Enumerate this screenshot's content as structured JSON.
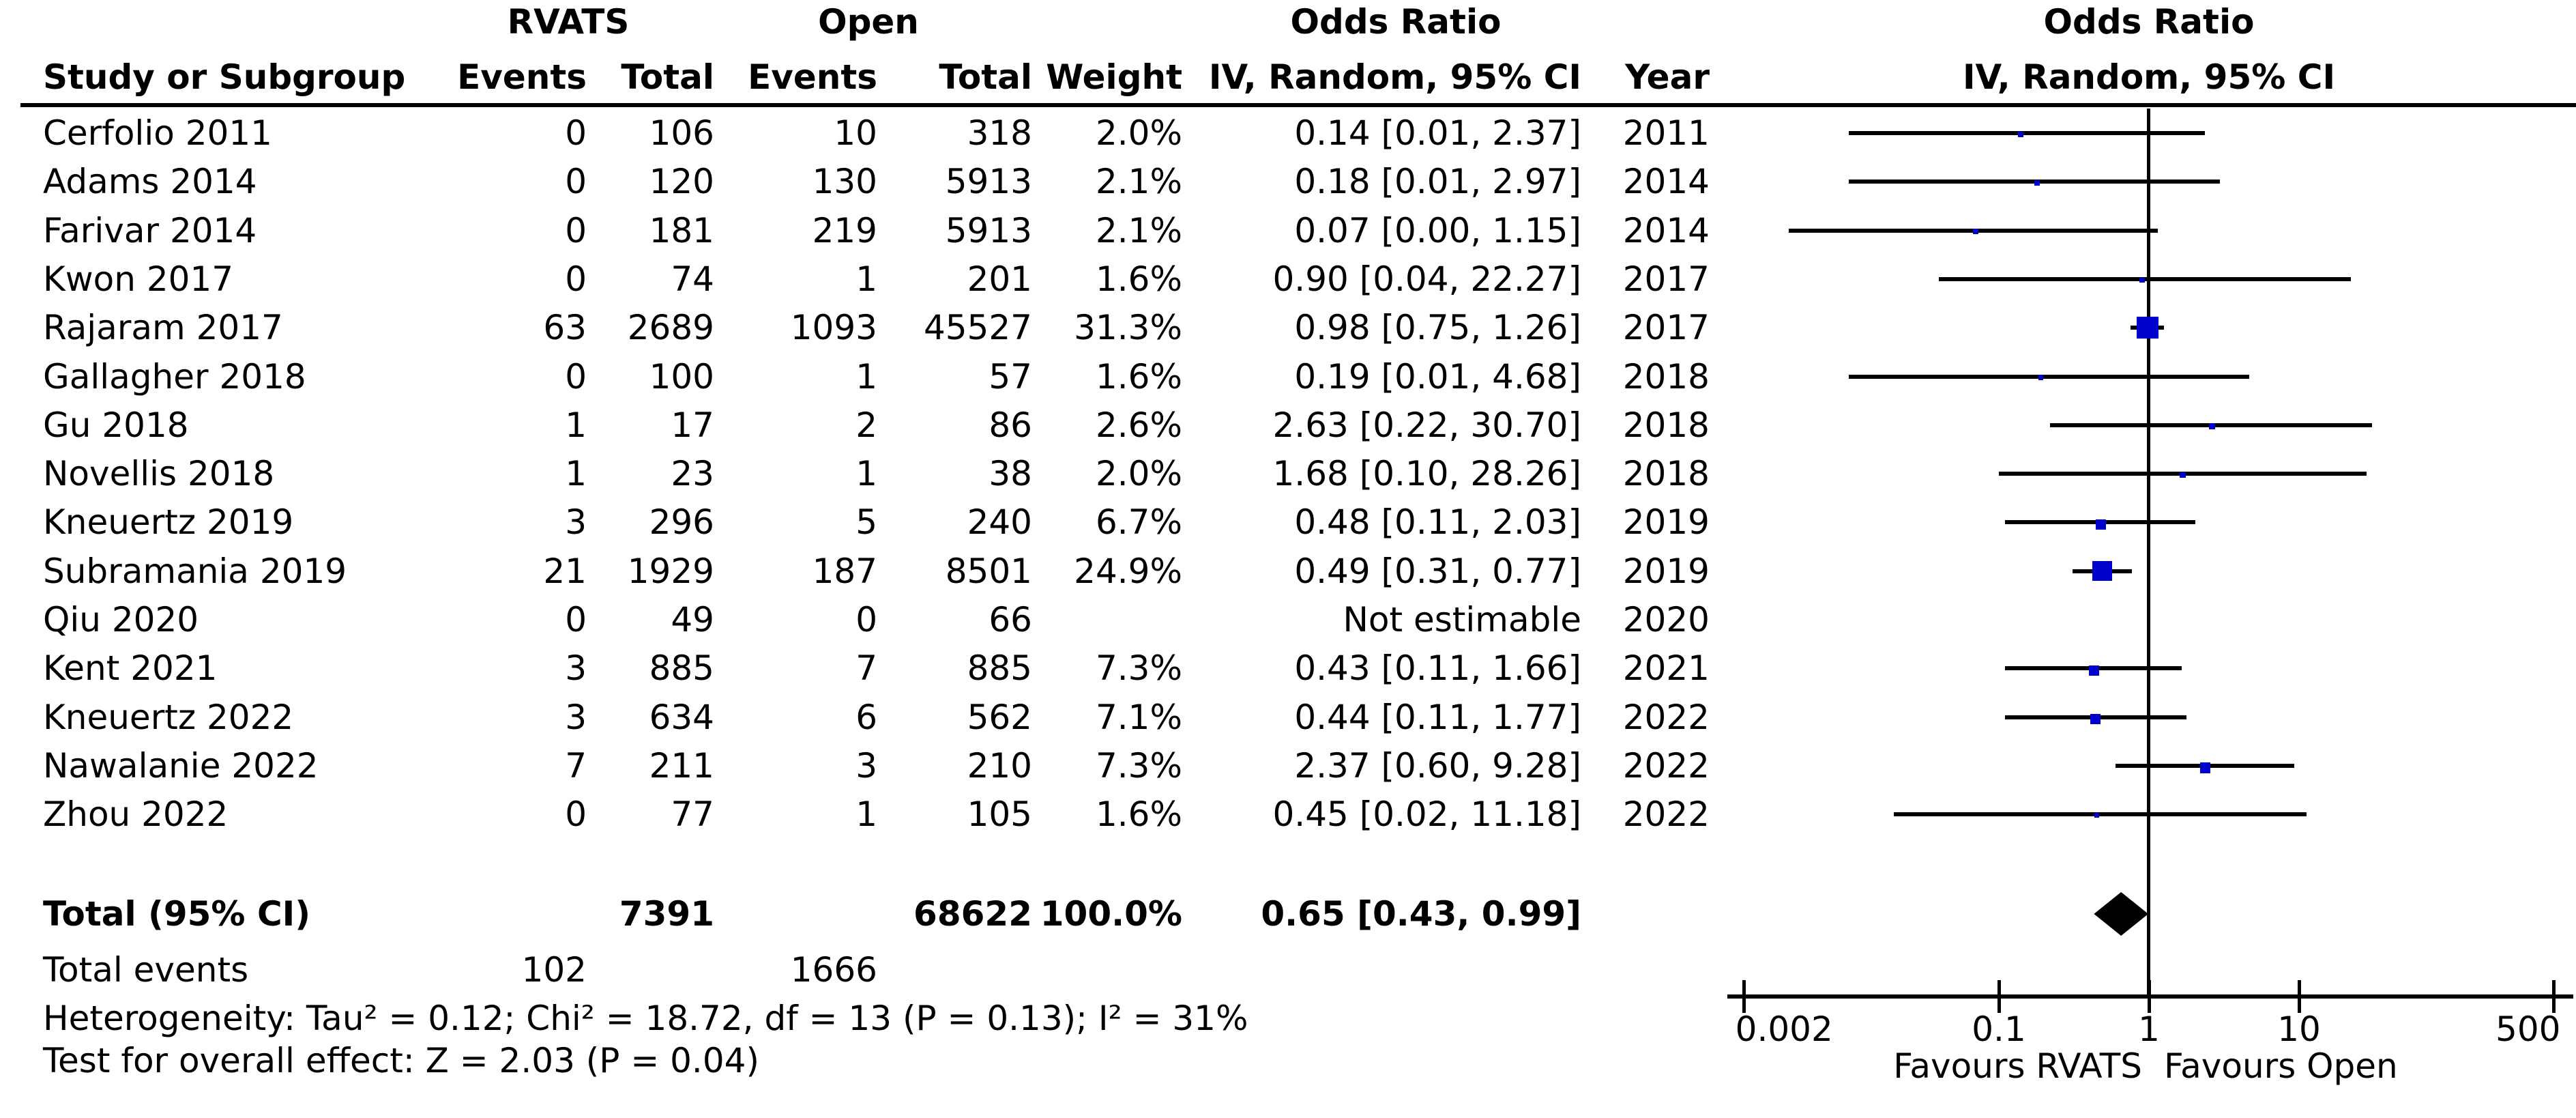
{
  "header": {
    "group1": "RVATS",
    "group2": "Open",
    "or_col_title": "Odds Ratio",
    "or_col_subtitle": "IV, Random, 95% CI",
    "plot_title": "Odds Ratio",
    "plot_subtitle": "IV, Random, 95% CI",
    "study": "Study or Subgroup",
    "events": "Events",
    "total": "Total",
    "weight": "Weight",
    "year": "Year"
  },
  "chart_data": {
    "type": "forest_plot",
    "effect_measure": "Odds Ratio, IV, Random, 95% CI",
    "marker_color": "#0000CC",
    "x_axis": {
      "scale": "log10",
      "ticks": [
        0.002,
        0.1,
        1,
        10,
        500
      ],
      "tick_labels": [
        "0.002",
        "0.1",
        "1",
        "10",
        "500"
      ],
      "favours_left": "Favours RVATS",
      "favours_right": "Favours Open"
    },
    "studies": [
      {
        "study": "Cerfolio 2011",
        "events1": "0",
        "total1": "106",
        "events2": "10",
        "total2": "318",
        "weight": "2.0%",
        "or_text": "0.14 [0.01, 2.37]",
        "year": "2011",
        "or": 0.14,
        "ci_low": 0.01,
        "ci_high": 2.37,
        "weight_pct": 2.0
      },
      {
        "study": "Adams 2014",
        "events1": "0",
        "total1": "120",
        "events2": "130",
        "total2": "5913",
        "weight": "2.1%",
        "or_text": "0.18 [0.01, 2.97]",
        "year": "2014",
        "or": 0.18,
        "ci_low": 0.01,
        "ci_high": 2.97,
        "weight_pct": 2.1
      },
      {
        "study": "Farivar 2014",
        "events1": "0",
        "total1": "181",
        "events2": "219",
        "total2": "5913",
        "weight": "2.1%",
        "or_text": "0.07 [0.00, 1.15]",
        "year": "2014",
        "or": 0.07,
        "ci_low": 0.004,
        "ci_high": 1.15,
        "weight_pct": 2.1
      },
      {
        "study": "Kwon 2017",
        "events1": "0",
        "total1": "74",
        "events2": "1",
        "total2": "201",
        "weight": "1.6%",
        "or_text": "0.90 [0.04, 22.27]",
        "year": "2017",
        "or": 0.9,
        "ci_low": 0.04,
        "ci_high": 22.27,
        "weight_pct": 1.6
      },
      {
        "study": "Rajaram 2017",
        "events1": "63",
        "total1": "2689",
        "events2": "1093",
        "total2": "45527",
        "weight": "31.3%",
        "or_text": "0.98 [0.75, 1.26]",
        "year": "2017",
        "or": 0.98,
        "ci_low": 0.75,
        "ci_high": 1.26,
        "weight_pct": 31.3
      },
      {
        "study": "Gallagher 2018",
        "events1": "0",
        "total1": "100",
        "events2": "1",
        "total2": "57",
        "weight": "1.6%",
        "or_text": "0.19 [0.01, 4.68]",
        "year": "2018",
        "or": 0.19,
        "ci_low": 0.01,
        "ci_high": 4.68,
        "weight_pct": 1.6
      },
      {
        "study": "Gu 2018",
        "events1": "1",
        "total1": "17",
        "events2": "2",
        "total2": "86",
        "weight": "2.6%",
        "or_text": "2.63 [0.22, 30.70]",
        "year": "2018",
        "or": 2.63,
        "ci_low": 0.22,
        "ci_high": 30.7,
        "weight_pct": 2.6
      },
      {
        "study": "Novellis 2018",
        "events1": "1",
        "total1": "23",
        "events2": "1",
        "total2": "38",
        "weight": "2.0%",
        "or_text": "1.68 [0.10, 28.26]",
        "year": "2018",
        "or": 1.68,
        "ci_low": 0.1,
        "ci_high": 28.26,
        "weight_pct": 2.0
      },
      {
        "study": "Kneuertz 2019",
        "events1": "3",
        "total1": "296",
        "events2": "5",
        "total2": "240",
        "weight": "6.7%",
        "or_text": "0.48 [0.11, 2.03]",
        "year": "2019",
        "or": 0.48,
        "ci_low": 0.11,
        "ci_high": 2.03,
        "weight_pct": 6.7
      },
      {
        "study": "Subramania 2019",
        "events1": "21",
        "total1": "1929",
        "events2": "187",
        "total2": "8501",
        "weight": "24.9%",
        "or_text": "0.49 [0.31, 0.77]",
        "year": "2019",
        "or": 0.49,
        "ci_low": 0.31,
        "ci_high": 0.77,
        "weight_pct": 24.9
      },
      {
        "study": "Qiu 2020",
        "events1": "0",
        "total1": "49",
        "events2": "0",
        "total2": "66",
        "weight": "",
        "or_text": "Not estimable",
        "year": "2020",
        "or": null,
        "ci_low": null,
        "ci_high": null,
        "weight_pct": null
      },
      {
        "study": "Kent 2021",
        "events1": "3",
        "total1": "885",
        "events2": "7",
        "total2": "885",
        "weight": "7.3%",
        "or_text": "0.43 [0.11, 1.66]",
        "year": "2021",
        "or": 0.43,
        "ci_low": 0.11,
        "ci_high": 1.66,
        "weight_pct": 7.3
      },
      {
        "study": "Kneuertz 2022",
        "events1": "3",
        "total1": "634",
        "events2": "6",
        "total2": "562",
        "weight": "7.1%",
        "or_text": "0.44 [0.11, 1.77]",
        "year": "2022",
        "or": 0.44,
        "ci_low": 0.11,
        "ci_high": 1.77,
        "weight_pct": 7.1
      },
      {
        "study": "Nawalanie 2022",
        "events1": "7",
        "total1": "211",
        "events2": "3",
        "total2": "210",
        "weight": "7.3%",
        "or_text": "2.37 [0.60, 9.28]",
        "year": "2022",
        "or": 2.37,
        "ci_low": 0.6,
        "ci_high": 9.28,
        "weight_pct": 7.3
      },
      {
        "study": "Zhou 2022",
        "events1": "0",
        "total1": "77",
        "events2": "1",
        "total2": "105",
        "weight": "1.6%",
        "or_text": "0.45 [0.02, 11.18]",
        "year": "2022",
        "or": 0.45,
        "ci_low": 0.02,
        "ci_high": 11.18,
        "weight_pct": 1.6
      }
    ],
    "total_row": {
      "label": "Total (95% CI)",
      "total1": "7391",
      "total2": "68622",
      "weight": "100.0%",
      "or_text": "0.65 [0.43, 0.99]",
      "or": 0.65,
      "ci_low": 0.43,
      "ci_high": 0.99
    },
    "total_events": {
      "label": "Total events",
      "events1": "102",
      "events2": "1666"
    },
    "heterogeneity": "Heterogeneity: Tau² = 0.12; Chi² = 18.72, df = 13 (P = 0.13); I² = 31%",
    "overall_effect": "Test for overall effect: Z = 2.03 (P = 0.04)"
  }
}
